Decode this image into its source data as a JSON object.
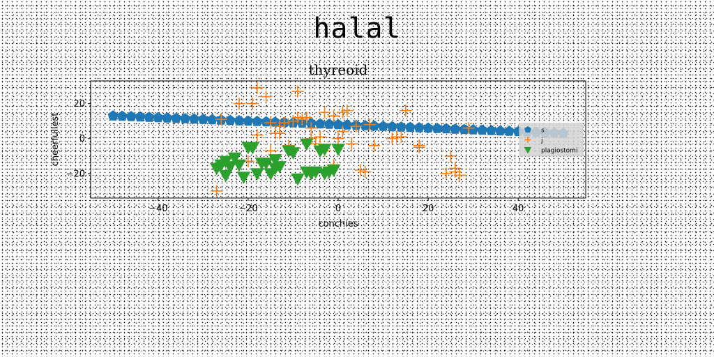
{
  "suptitle": "halal",
  "chart_data": {
    "type": "scatter",
    "title": "thyreoid",
    "xlabel": "conchies",
    "ylabel": "cheerfullest",
    "xlim": [
      -55,
      55
    ],
    "ylim": [
      -34,
      33
    ],
    "xticks": [
      -40,
      -20,
      0,
      20,
      40
    ],
    "yticks": [
      -20,
      0,
      20
    ],
    "grid": false,
    "legend_position": "right",
    "series": [
      {
        "name": "s",
        "marker": "pentagon",
        "color": "#1f77b4",
        "x": [
          -50,
          -48,
          -46,
          -44,
          -42,
          -40,
          -38,
          -36,
          -34,
          -32,
          -30,
          -28,
          -26,
          -24,
          -22,
          -20,
          -18,
          -16,
          -14,
          -12,
          -10,
          -8,
          -6,
          -4,
          -2,
          0,
          2,
          4,
          6,
          8,
          10,
          12,
          14,
          16,
          18,
          20,
          22,
          24,
          26,
          28,
          30,
          32,
          34,
          36,
          38,
          40,
          42,
          44,
          46,
          48,
          50
        ],
        "y": [
          13,
          12.8,
          12.6,
          12.4,
          12.2,
          12,
          11.8,
          11.6,
          11.4,
          11.2,
          11,
          10.8,
          10.6,
          10.4,
          10.2,
          10,
          9.8,
          9.6,
          9.4,
          9.2,
          9,
          8.8,
          8.6,
          8.4,
          8.2,
          8,
          7.8,
          7.6,
          7.4,
          7.2,
          7,
          6.8,
          6.6,
          6.4,
          6.2,
          6,
          5.8,
          5.6,
          5.4,
          5.2,
          5,
          4.8,
          4.6,
          4.4,
          4.2,
          4,
          3.8,
          3.6,
          3.4,
          3.2,
          3
        ]
      },
      {
        "name": "j",
        "marker": "plus",
        "color": "#ff7f0e",
        "x": [
          -18,
          -16,
          -9,
          -22,
          -19,
          -12,
          -15,
          -14,
          -13,
          -8,
          -10,
          -7,
          -6,
          -3,
          -1,
          1,
          2,
          12,
          13,
          14,
          15,
          18,
          25,
          26,
          29,
          -27,
          -20,
          -17,
          -15,
          -11,
          -5,
          -3,
          -1,
          3,
          5,
          6,
          7,
          8,
          18,
          24,
          26,
          27,
          -26,
          -18,
          -13,
          -9,
          -6,
          -4,
          0,
          1,
          4
        ],
        "y": [
          29,
          24,
          27,
          20,
          20,
          9,
          9,
          3,
          3,
          11,
          10,
          12,
          6,
          15,
          13,
          15,
          16,
          0,
          1,
          1,
          16,
          -4,
          -10,
          -17,
          6,
          -30,
          -13,
          -14,
          -7,
          -4,
          -3,
          -7,
          -15,
          -3,
          -18,
          -19,
          8,
          -4,
          -5,
          -20,
          -19,
          -21,
          11,
          2,
          7,
          12,
          0,
          1,
          0,
          4,
          7
        ]
      },
      {
        "name": "plagiostomi",
        "marker": "triangle-down",
        "color": "#2ca02c",
        "x": [
          -27,
          -26,
          -25,
          -24,
          -23,
          -22,
          -21,
          -19,
          -18,
          -17,
          -16,
          -15,
          -14,
          -13,
          -11,
          -10,
          -9,
          -7,
          -6,
          -5,
          -4,
          -3,
          -2,
          -1,
          0,
          -7,
          -3,
          -20,
          -25,
          -14
        ],
        "y": [
          -17,
          -15,
          -13,
          -16,
          -11,
          -15,
          -22,
          -5,
          -20,
          -14,
          -14,
          -20,
          -17,
          -16,
          -7,
          -8,
          -23,
          -19,
          -20,
          -19,
          -7,
          -20,
          -19,
          -18,
          -6,
          -3,
          -6,
          -5,
          -21,
          -12
        ]
      }
    ]
  }
}
